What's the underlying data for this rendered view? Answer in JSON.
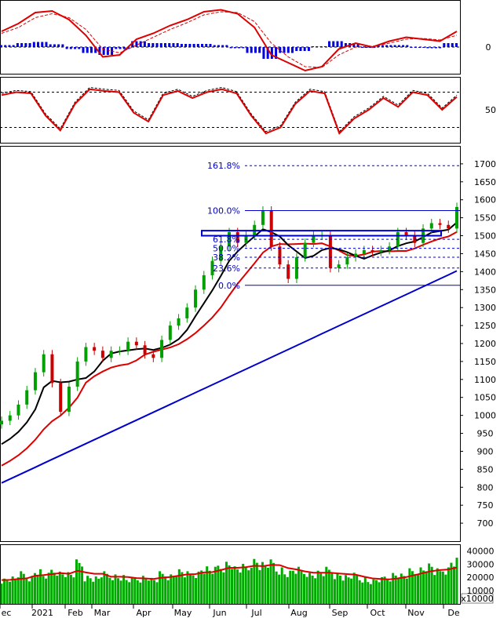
{
  "chart_data": {
    "type": "candlestick",
    "colors": {
      "up": "#00a000",
      "down": "#cc0000",
      "macd_line": "#dd0000",
      "signal_line": "#dd0000",
      "histogram": "#0000dd",
      "ma_short": "#000000",
      "ma_mid": "#dd0000",
      "ma_long": "#0000cc",
      "volume": "#00aa00",
      "volume_ma": "#dd0000",
      "fibonacci": "#0000cc",
      "channel_box": "#0000cc"
    },
    "x_axis": {
      "labels": [
        "ec",
        "2021",
        "Feb",
        "Mar",
        "Apr",
        "May",
        "Jun",
        "Jul",
        "Aug",
        "Sep",
        "Oct",
        "Nov",
        "De"
      ]
    },
    "macd_panel": {
      "ticks": [
        "0"
      ],
      "series": [
        {
          "name": "",
          "values": [
            40,
            60,
            88,
            92,
            70,
            30,
            -25,
            -20,
            20,
            35,
            55,
            70,
            90,
            95,
            85,
            50,
            -20,
            -40,
            -60,
            -50,
            -5,
            10,
            0,
            15,
            25,
            20,
            15,
            40
          ]
        },
        {
          "name": "",
          "values": [
            35,
            50,
            75,
            85,
            75,
            45,
            -5,
            -15,
            5,
            25,
            45,
            62,
            82,
            90,
            88,
            65,
            10,
            -25,
            -50,
            -52,
            -20,
            0,
            2,
            10,
            20,
            22,
            18,
            30
          ]
        }
      ],
      "histogram": [
        5,
        10,
        13,
        7,
        -5,
        -15,
        -20,
        -5,
        15,
        10,
        10,
        8,
        8,
        5,
        -3,
        -15,
        -30,
        -15,
        -10,
        2,
        15,
        10,
        -2,
        5,
        5,
        -2,
        -3,
        10
      ]
    },
    "oscillator_panel": {
      "ticks": [
        "50"
      ],
      "levels": [
        80,
        20
      ],
      "series": [
        {
          "name": "",
          "values": [
            75,
            80,
            78,
            40,
            15,
            60,
            85,
            82,
            80,
            45,
            30,
            75,
            82,
            70,
            80,
            85,
            78,
            40,
            10,
            20,
            60,
            82,
            78,
            10,
            35,
            50,
            70,
            55,
            80,
            75,
            50,
            72
          ]
        }
      ]
    },
    "price_panel": {
      "y_ticks": [
        700,
        750,
        800,
        850,
        900,
        950,
        1000,
        1050,
        1100,
        1150,
        1200,
        1250,
        1300,
        1350,
        1400,
        1450,
        1500,
        1550,
        1600,
        1650,
        1700
      ],
      "ylim": [
        650,
        1750
      ],
      "fibonacci": [
        {
          "label": "161.8%",
          "value": 1695
        },
        {
          "label": "100.0%",
          "value": 1570
        },
        {
          "label": "61.8%",
          "value": 1490
        },
        {
          "label": "50.0%",
          "value": 1465
        },
        {
          "label": "38.2%",
          "value": 1440
        },
        {
          "label": "23.6%",
          "value": 1410
        },
        {
          "label": "0.0%",
          "value": 1362
        }
      ],
      "channel_box": {
        "top": 1514,
        "bottom": 1500
      },
      "close": [
        985,
        1000,
        1030,
        1070,
        1120,
        1170,
        1090,
        1010,
        1080,
        1150,
        1190,
        1180,
        1160,
        1180,
        1180,
        1205,
        1195,
        1170,
        1160,
        1210,
        1250,
        1270,
        1300,
        1350,
        1390,
        1430,
        1470,
        1510,
        1480,
        1500,
        1530,
        1570,
        1470,
        1420,
        1380,
        1440,
        1480,
        1500,
        1500,
        1410,
        1420,
        1440,
        1450,
        1460,
        1455,
        1460,
        1470,
        1510,
        1500,
        1480,
        1520,
        1535,
        1530,
        1520,
        1580
      ]
    },
    "volume_panel": {
      "y_ticks": [
        10000,
        20000,
        30000,
        40000
      ],
      "multiplier_label": "x10000",
      "values": [
        18000,
        19000,
        22000,
        20000,
        24000,
        21000,
        25000,
        23000,
        22000,
        30000,
        20000,
        19000,
        22000,
        21000,
        20000,
        18000,
        19000,
        20000,
        18000,
        22000,
        21000,
        24000,
        22000,
        23000,
        26000,
        25000,
        28000,
        30000,
        26000,
        27000,
        32000,
        29000,
        30000,
        26000,
        23000,
        25000,
        24000,
        22000,
        23000,
        25000,
        22000,
        20000,
        21000,
        19000,
        17000,
        18000,
        20000,
        22000,
        21000,
        24000,
        26000,
        28000,
        24000,
        26000,
        32000
      ]
    }
  }
}
